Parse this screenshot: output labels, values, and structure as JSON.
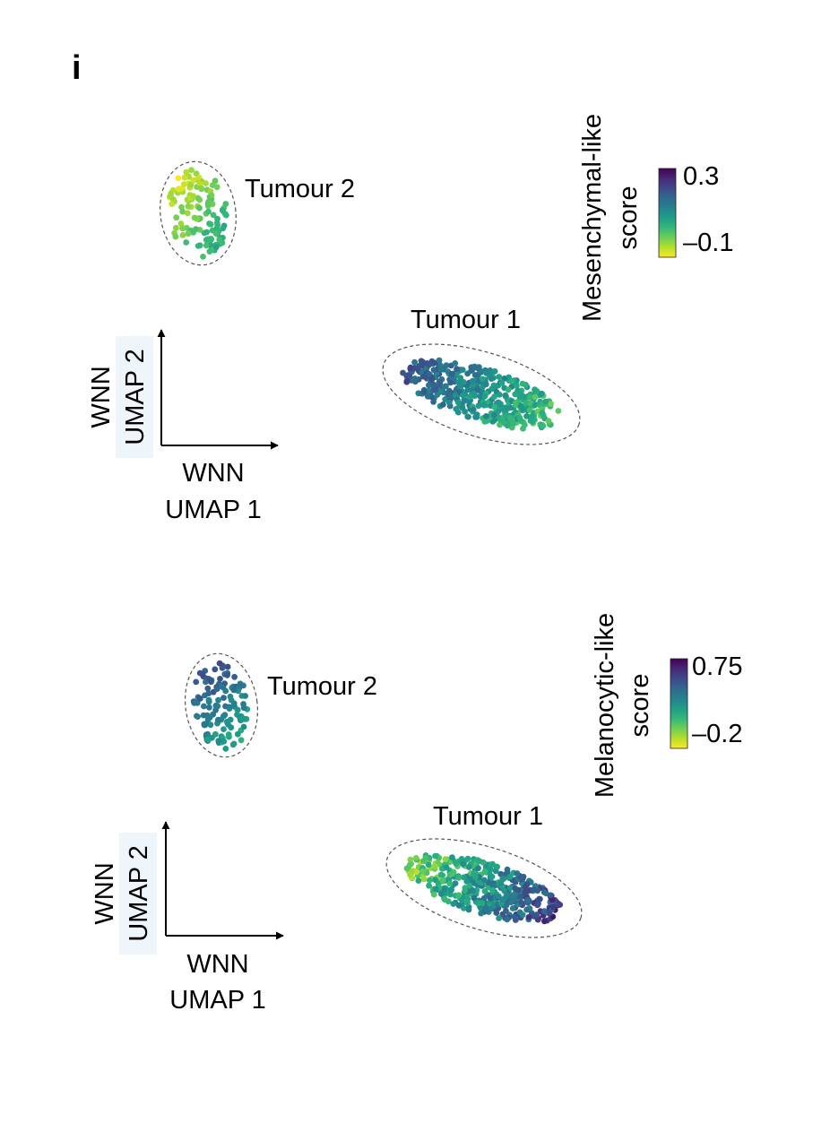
{
  "panel_letter": "i",
  "colors": {
    "viridis": [
      "#fde725",
      "#b5de2b",
      "#6ece58",
      "#35b779",
      "#1f9e89",
      "#26828e",
      "#31688e",
      "#3e4989",
      "#482878",
      "#440154"
    ],
    "ellipse_stroke": "#555555",
    "axis_label_highlight": "#eef6fc"
  },
  "chart_data": [
    {
      "type": "scatter",
      "embedding": "WNN UMAP",
      "xlabel": [
        "WNN",
        "UMAP 1"
      ],
      "ylabel": [
        "WNN",
        "UMAP 2"
      ],
      "color_by": [
        "Mesenchymal-like",
        "score"
      ],
      "colorbar": {
        "min": -0.1,
        "max": 0.3,
        "tick_labels": [
          "0.3",
          "–0.1"
        ]
      },
      "groups": [
        {
          "label": "Tumour 2",
          "n_cells": 130,
          "score_low": -0.1,
          "score_high": 0.08
        },
        {
          "label": "Tumour 1",
          "n_cells": 420,
          "score_low": -0.05,
          "score_high": 0.25
        }
      ]
    },
    {
      "type": "scatter",
      "embedding": "WNN UMAP",
      "xlabel": [
        "WNN",
        "UMAP 1"
      ],
      "ylabel": [
        "WNN",
        "UMAP 2"
      ],
      "color_by": [
        "Melanocytic-like",
        "score"
      ],
      "colorbar": {
        "min": -0.2,
        "max": 0.75,
        "tick_labels": [
          "0.75",
          "–0.2"
        ]
      },
      "groups": [
        {
          "label": "Tumour 2",
          "n_cells": 130,
          "score_low": 0.1,
          "score_high": 0.6
        },
        {
          "label": "Tumour 1",
          "n_cells": 420,
          "score_low": -0.2,
          "score_high": 0.75
        }
      ]
    }
  ]
}
